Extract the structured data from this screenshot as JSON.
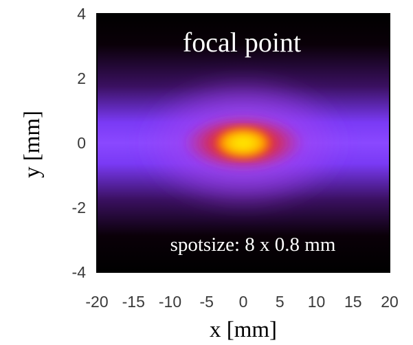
{
  "chart_data": {
    "type": "heatmap",
    "title": "",
    "xlabel": "x [mm]",
    "ylabel": "y [mm]",
    "xlim": [
      -20,
      20
    ],
    "ylim": [
      -4,
      4
    ],
    "x_ticks": [
      "-20",
      "-15",
      "-10",
      "-5",
      "0",
      "5",
      "10",
      "15",
      "20"
    ],
    "y_ticks": [
      "4",
      "2",
      "0",
      "-2",
      "-4"
    ],
    "colormap": "black-purple-red-yellow",
    "annotations": [
      "focal point",
      "spotsize: 8 x 0.8 mm"
    ],
    "spot": {
      "center_x": 0,
      "center_y": 0,
      "width_mm": 8,
      "height_mm": 0.8
    },
    "colors": {
      "background": "#000000",
      "low": "#25001e",
      "mid": "#8a2cf5",
      "high": "#e0261a",
      "peak": "#f9d800"
    }
  }
}
